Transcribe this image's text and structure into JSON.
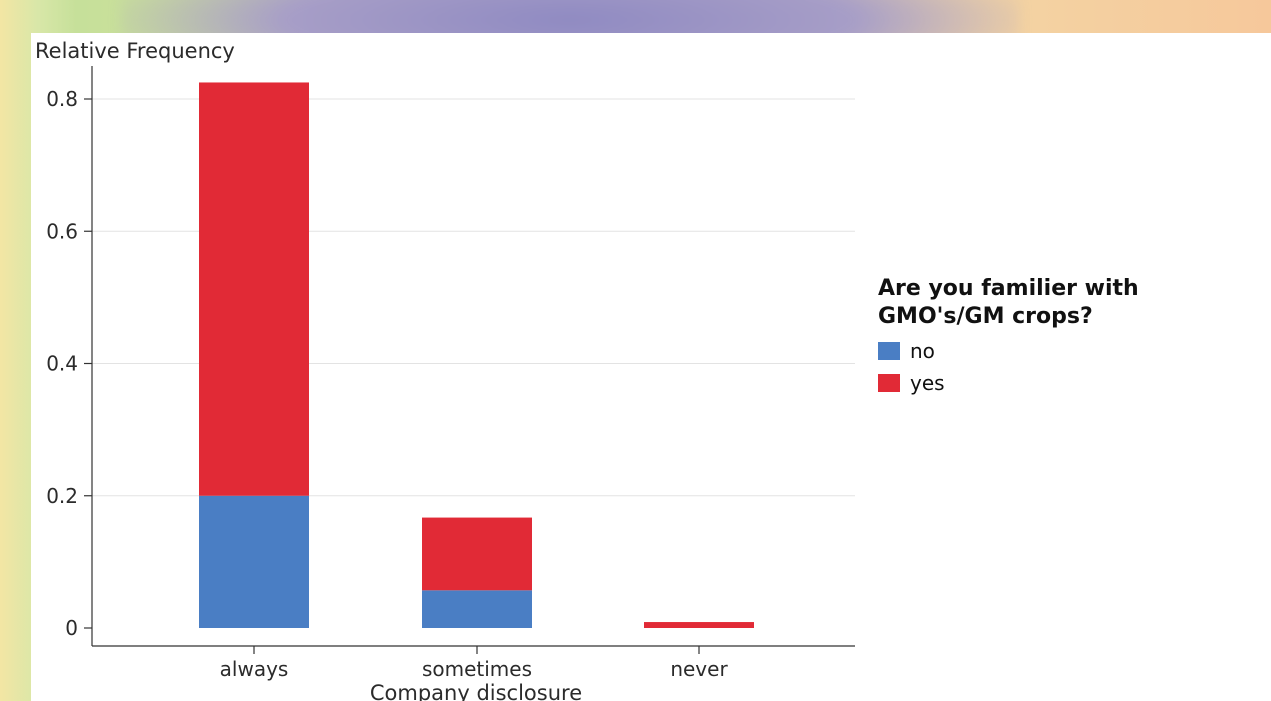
{
  "chart_data": {
    "type": "bar",
    "stacked": true,
    "categories": [
      "always",
      "sometimes",
      "never"
    ],
    "series": [
      {
        "name": "no",
        "values": [
          0.2,
          0.057,
          0.0
        ],
        "color": "#4a7ec4"
      },
      {
        "name": "yes",
        "values": [
          0.625,
          0.11,
          0.009
        ],
        "color": "#e12a36"
      }
    ],
    "title": "",
    "xlabel": "Company disclosure",
    "ylabel": "Relative Frequency",
    "ylim": [
      0,
      0.85
    ],
    "yticks": [
      0,
      0.2,
      0.4,
      0.6,
      0.8
    ],
    "ytick_labels": [
      "0",
      "0.2",
      "0.4",
      "0.6",
      "0.8"
    ],
    "grid": true,
    "legend": {
      "title": "Are you familier with\nGMO's/GM crops?",
      "placement": "right",
      "entries": [
        "no",
        "yes"
      ]
    }
  }
}
